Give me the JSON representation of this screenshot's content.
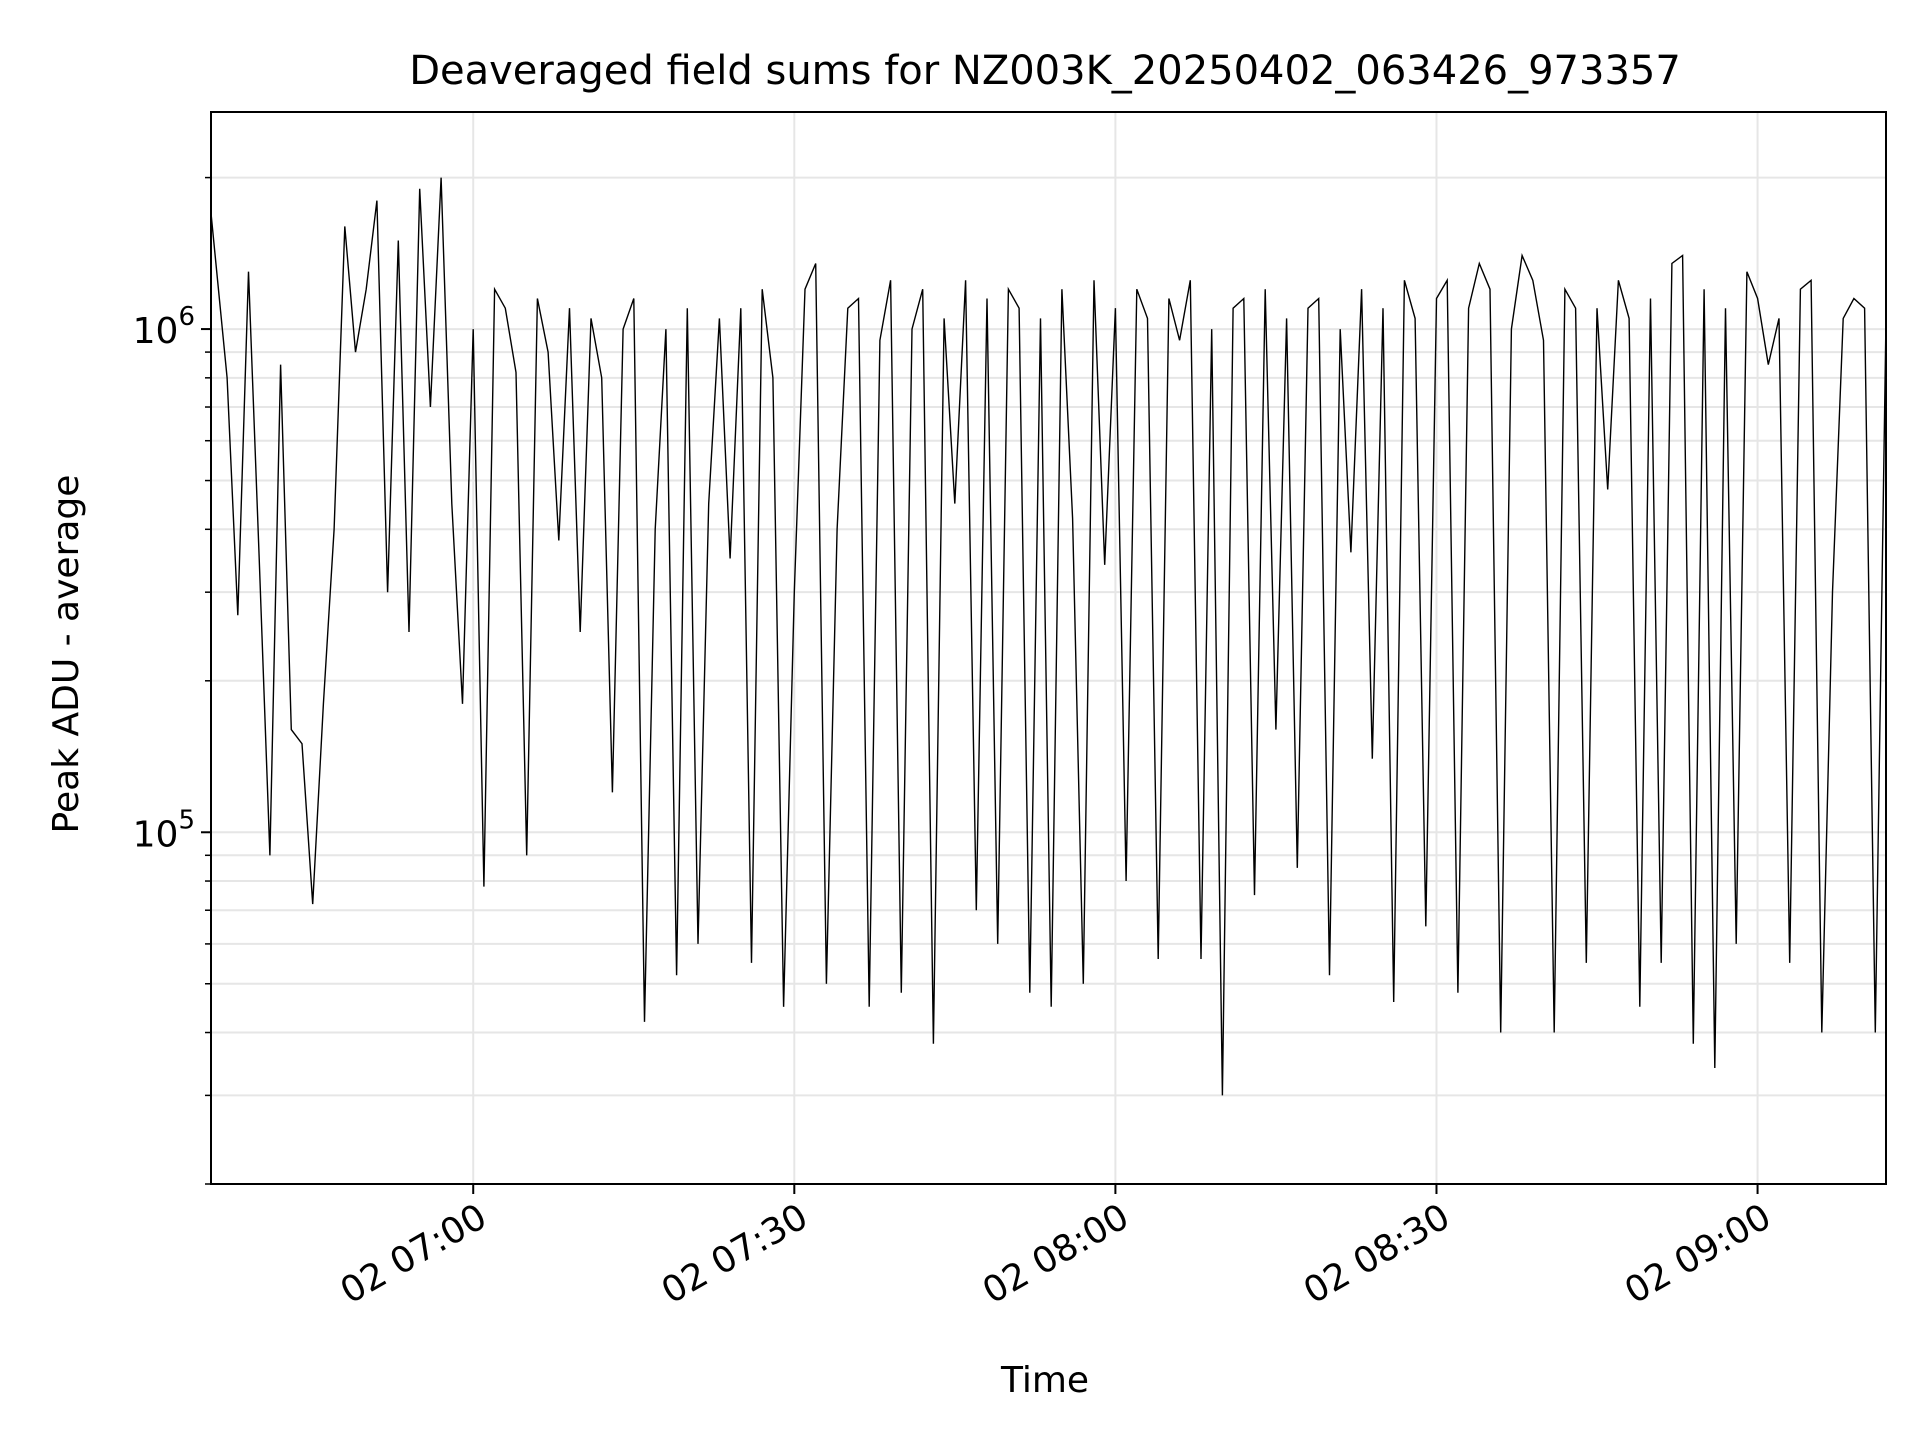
{
  "chart_data": {
    "type": "line",
    "title": "Deaveraged field sums for NZ003K_20250402_063426_973357",
    "xlabel": "Time",
    "ylabel": "Peak ADU - average",
    "x_ticks": [
      "02 07:00",
      "02 07:30",
      "02 08:00",
      "02 08:30",
      "02 09:00"
    ],
    "y_scale": "log",
    "y_ticks": [
      {
        "value": 100000,
        "base": "10",
        "exp": "5"
      },
      {
        "value": 1000000,
        "base": "10",
        "exp": "6"
      }
    ],
    "xlim": [
      "2025-04-02T06:35:30",
      "2025-04-02T09:12:00"
    ],
    "ylim": [
      20000,
      2700000
    ],
    "grid": true,
    "line_color": "#000000",
    "grid_color": "#e6e6e6",
    "series": [
      {
        "x": [
          "2025-04-02T06:35:30",
          "2025-04-02T06:37:00",
          "2025-04-02T06:38:00",
          "2025-04-02T06:39:00",
          "2025-04-02T06:40:00",
          "2025-04-02T06:41:00",
          "2025-04-02T06:42:00",
          "2025-04-02T06:43:00",
          "2025-04-02T06:44:00",
          "2025-04-02T06:45:00",
          "2025-04-02T06:46:00",
          "2025-04-02T06:47:00",
          "2025-04-02T06:48:00",
          "2025-04-02T06:49:00",
          "2025-04-02T06:50:00",
          "2025-04-02T06:51:00",
          "2025-04-02T06:52:00",
          "2025-04-02T06:53:00",
          "2025-04-02T06:54:00",
          "2025-04-02T06:55:00",
          "2025-04-02T06:56:00",
          "2025-04-02T06:57:00",
          "2025-04-02T06:58:00",
          "2025-04-02T06:59:00",
          "2025-04-02T07:00:00",
          "2025-04-02T07:01:00",
          "2025-04-02T07:02:00",
          "2025-04-02T07:03:00",
          "2025-04-02T07:04:00",
          "2025-04-02T07:05:00",
          "2025-04-02T07:06:00",
          "2025-04-02T07:07:00",
          "2025-04-02T07:08:00",
          "2025-04-02T07:09:00",
          "2025-04-02T07:10:00",
          "2025-04-02T07:11:00",
          "2025-04-02T07:12:00",
          "2025-04-02T07:13:00",
          "2025-04-02T07:14:00",
          "2025-04-02T07:15:00",
          "2025-04-02T07:16:00",
          "2025-04-02T07:17:00",
          "2025-04-02T07:18:00",
          "2025-04-02T07:19:00",
          "2025-04-02T07:20:00",
          "2025-04-02T07:21:00",
          "2025-04-02T07:22:00",
          "2025-04-02T07:23:00",
          "2025-04-02T07:24:00",
          "2025-04-02T07:25:00",
          "2025-04-02T07:26:00",
          "2025-04-02T07:27:00",
          "2025-04-02T07:28:00",
          "2025-04-02T07:29:00",
          "2025-04-02T07:30:00",
          "2025-04-02T07:31:00",
          "2025-04-02T07:32:00",
          "2025-04-02T07:33:00",
          "2025-04-02T07:34:00",
          "2025-04-02T07:35:00",
          "2025-04-02T07:36:00",
          "2025-04-02T07:37:00",
          "2025-04-02T07:38:00",
          "2025-04-02T07:39:00",
          "2025-04-02T07:40:00",
          "2025-04-02T07:41:00",
          "2025-04-02T07:42:00",
          "2025-04-02T07:43:00",
          "2025-04-02T07:44:00",
          "2025-04-02T07:45:00",
          "2025-04-02T07:46:00",
          "2025-04-02T07:47:00",
          "2025-04-02T07:48:00",
          "2025-04-02T07:49:00",
          "2025-04-02T07:50:00",
          "2025-04-02T07:51:00",
          "2025-04-02T07:52:00",
          "2025-04-02T07:53:00",
          "2025-04-02T07:54:00",
          "2025-04-02T07:55:00",
          "2025-04-02T07:56:00",
          "2025-04-02T07:57:00",
          "2025-04-02T07:58:00",
          "2025-04-02T07:59:00",
          "2025-04-02T08:00:00",
          "2025-04-02T08:01:00",
          "2025-04-02T08:02:00",
          "2025-04-02T08:03:00",
          "2025-04-02T08:04:00",
          "2025-04-02T08:05:00",
          "2025-04-02T08:06:00",
          "2025-04-02T08:07:00",
          "2025-04-02T08:08:00",
          "2025-04-02T08:09:00",
          "2025-04-02T08:10:00",
          "2025-04-02T08:11:00",
          "2025-04-02T08:12:00",
          "2025-04-02T08:13:00",
          "2025-04-02T08:14:00",
          "2025-04-02T08:15:00",
          "2025-04-02T08:16:00",
          "2025-04-02T08:17:00",
          "2025-04-02T08:18:00",
          "2025-04-02T08:19:00",
          "2025-04-02T08:20:00",
          "2025-04-02T08:21:00",
          "2025-04-02T08:22:00",
          "2025-04-02T08:23:00",
          "2025-04-02T08:24:00",
          "2025-04-02T08:25:00",
          "2025-04-02T08:26:00",
          "2025-04-02T08:27:00",
          "2025-04-02T08:28:00",
          "2025-04-02T08:29:00",
          "2025-04-02T08:30:00",
          "2025-04-02T08:31:00",
          "2025-04-02T08:32:00",
          "2025-04-02T08:33:00",
          "2025-04-02T08:34:00",
          "2025-04-02T08:35:00",
          "2025-04-02T08:36:00",
          "2025-04-02T08:37:00",
          "2025-04-02T08:38:00",
          "2025-04-02T08:39:00",
          "2025-04-02T08:40:00",
          "2025-04-02T08:41:00",
          "2025-04-02T08:42:00",
          "2025-04-02T08:43:00",
          "2025-04-02T08:44:00",
          "2025-04-02T08:45:00",
          "2025-04-02T08:46:00",
          "2025-04-02T08:47:00",
          "2025-04-02T08:48:00",
          "2025-04-02T08:49:00",
          "2025-04-02T08:50:00",
          "2025-04-02T08:51:00",
          "2025-04-02T08:52:00",
          "2025-04-02T08:53:00",
          "2025-04-02T08:54:00",
          "2025-04-02T08:55:00",
          "2025-04-02T08:56:00",
          "2025-04-02T08:57:00",
          "2025-04-02T08:58:00",
          "2025-04-02T08:59:00",
          "2025-04-02T09:00:00",
          "2025-04-02T09:01:00",
          "2025-04-02T09:02:00",
          "2025-04-02T09:03:00",
          "2025-04-02T09:04:00",
          "2025-04-02T09:05:00",
          "2025-04-02T09:06:00",
          "2025-04-02T09:07:00",
          "2025-04-02T09:08:00",
          "2025-04-02T09:09:00",
          "2025-04-02T09:10:00",
          "2025-04-02T09:11:00",
          "2025-04-02T09:12:00"
        ],
        "y": [
          1700000,
          800000,
          270000,
          1300000,
          350000,
          90000,
          850000,
          160000,
          150000,
          72000,
          180000,
          400000,
          1600000,
          900000,
          1200000,
          1800000,
          300000,
          1500000,
          250000,
          1900000,
          700000,
          2000000,
          450000,
          180000,
          1000000,
          78000,
          1200000,
          1100000,
          820000,
          90000,
          1150000,
          900000,
          380000,
          1100000,
          250000,
          1050000,
          800000,
          120000,
          1000000,
          1150000,
          42000,
          400000,
          1000000,
          52000,
          1100000,
          60000,
          450000,
          1050000,
          350000,
          1100000,
          55000,
          1200000,
          800000,
          45000,
          300000,
          1200000,
          1350000,
          50000,
          400000,
          1100000,
          1150000,
          45000,
          950000,
          1250000,
          48000,
          1000000,
          1200000,
          38000,
          1050000,
          450000,
          1250000,
          70000,
          1150000,
          60000,
          1200000,
          1100000,
          48000,
          1050000,
          45000,
          1200000,
          420000,
          50000,
          1250000,
          340000,
          1100000,
          80000,
          1200000,
          1050000,
          56000,
          1150000,
          950000,
          1250000,
          56000,
          1000000,
          30000,
          1100000,
          1150000,
          75000,
          1200000,
          160000,
          1050000,
          85000,
          1100000,
          1150000,
          52000,
          1000000,
          360000,
          1200000,
          140000,
          1100000,
          46000,
          1250000,
          1050000,
          65000,
          1150000,
          1250000,
          48000,
          1100000,
          1350000,
          1200000,
          40000,
          1000000,
          1400000,
          1250000,
          950000,
          40000,
          1200000,
          1100000,
          55000,
          1100000,
          480000,
          1250000,
          1050000,
          45000,
          1150000,
          55000,
          1350000,
          1400000,
          38000,
          1200000,
          34000,
          1100000,
          60000,
          1300000,
          1150000,
          850000,
          1050000,
          55000,
          1200000,
          1250000,
          40000,
          300000,
          1050000,
          1150000,
          1100000,
          40000,
          1050000
        ]
      }
    ]
  }
}
